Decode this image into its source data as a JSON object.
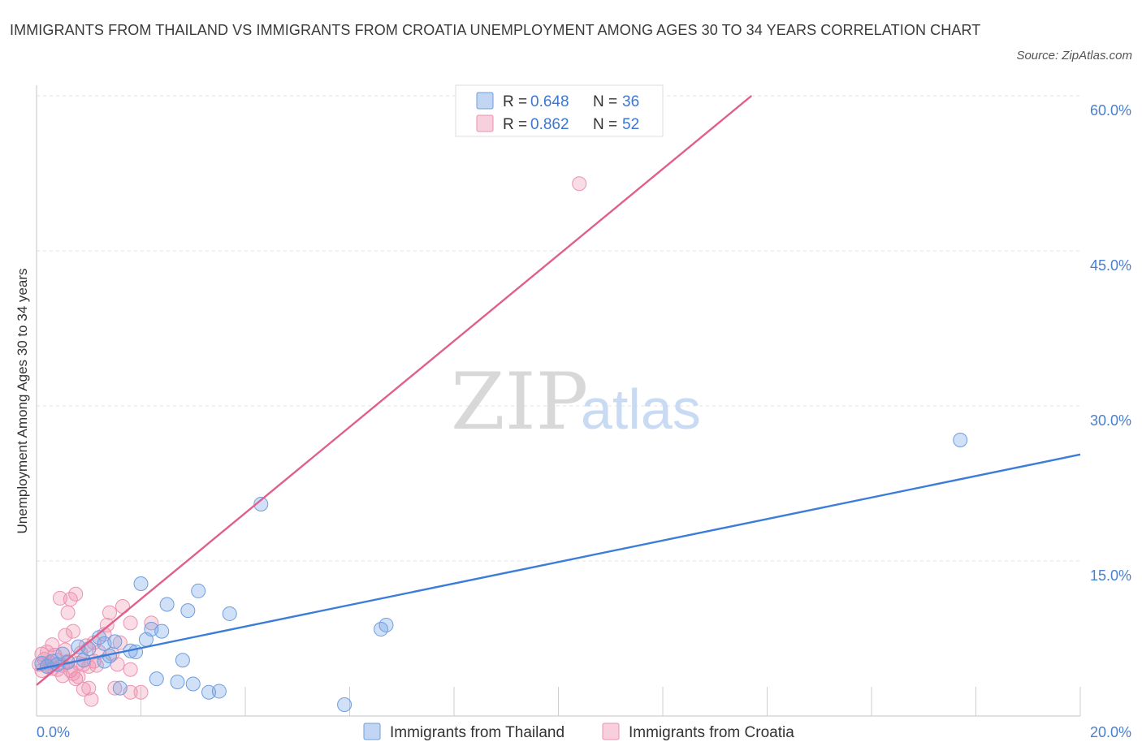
{
  "title": "IMMIGRANTS FROM THAILAND VS IMMIGRANTS FROM CROATIA UNEMPLOYMENT AMONG AGES 30 TO 34 YEARS CORRELATION CHART",
  "source": "Source: ZipAtlas.com",
  "watermark": {
    "zip": "ZIP",
    "atlas": "atlas"
  },
  "colors": {
    "blue": "#3b7dd8",
    "blue_fill": "rgba(120,165,230,0.35)",
    "pink": "#e0608b",
    "pink_fill": "rgba(240,140,170,0.3)",
    "tick_label": "#4a7fd0",
    "grid": "#e3e3e3"
  },
  "legend": {
    "rows": [
      {
        "r_label": "R =",
        "r_value": "0.648",
        "n_label": "N =",
        "n_value": "36"
      },
      {
        "r_label": "R =",
        "r_value": "0.862",
        "n_label": "N =",
        "n_value": "52"
      }
    ]
  },
  "chart_data": {
    "type": "scatter",
    "xlabel": "",
    "ylabel": "Unemployment Among Ages 30 to 34 years",
    "xlim": [
      0,
      20
    ],
    "ylim": [
      0,
      60
    ],
    "x_tick_labels": [
      "0.0%",
      "20.0%"
    ],
    "y_ticks": [
      15,
      30,
      45,
      60
    ],
    "y_tick_labels": [
      "15.0%",
      "30.0%",
      "45.0%",
      "60.0%"
    ],
    "grid": true,
    "legend_position": "top-center",
    "series": [
      {
        "name": "Immigrants from Thailand",
        "color": "#3b7dd8",
        "trend": {
          "x0": 0,
          "y0": 4.5,
          "x1": 20,
          "y1": 25.3
        },
        "points": [
          [
            0.1,
            5.1
          ],
          [
            0.2,
            4.8
          ],
          [
            0.3,
            5.3
          ],
          [
            0.4,
            5.0
          ],
          [
            0.5,
            6.0
          ],
          [
            0.6,
            5.2
          ],
          [
            0.8,
            6.7
          ],
          [
            0.9,
            5.4
          ],
          [
            1.0,
            6.5
          ],
          [
            1.2,
            7.6
          ],
          [
            1.3,
            7.0
          ],
          [
            1.3,
            5.3
          ],
          [
            1.4,
            5.8
          ],
          [
            1.5,
            7.2
          ],
          [
            1.6,
            2.7
          ],
          [
            1.8,
            6.3
          ],
          [
            1.9,
            6.2
          ],
          [
            2.0,
            12.8
          ],
          [
            2.1,
            7.4
          ],
          [
            2.2,
            8.4
          ],
          [
            2.3,
            3.6
          ],
          [
            2.4,
            8.2
          ],
          [
            2.5,
            10.8
          ],
          [
            2.7,
            3.3
          ],
          [
            2.8,
            5.4
          ],
          [
            2.9,
            10.2
          ],
          [
            3.0,
            3.1
          ],
          [
            3.1,
            12.1
          ],
          [
            3.3,
            2.3
          ],
          [
            3.5,
            2.4
          ],
          [
            3.7,
            9.9
          ],
          [
            4.3,
            20.5
          ],
          [
            5.9,
            1.1
          ],
          [
            6.6,
            8.4
          ],
          [
            6.7,
            8.8
          ],
          [
            17.7,
            26.7
          ]
        ]
      },
      {
        "name": "Immigrants from Croatia",
        "color": "#e0608b",
        "trend": {
          "x0": 0,
          "y0": 3.0,
          "x1": 13.7,
          "y1": 60.0
        },
        "points": [
          [
            0.05,
            5.0
          ],
          [
            0.1,
            6.0
          ],
          [
            0.1,
            4.4
          ],
          [
            0.15,
            5.5
          ],
          [
            0.2,
            4.8
          ],
          [
            0.2,
            6.2
          ],
          [
            0.25,
            5.2
          ],
          [
            0.3,
            4.6
          ],
          [
            0.3,
            6.9
          ],
          [
            0.35,
            5.9
          ],
          [
            0.4,
            4.5
          ],
          [
            0.4,
            5.4
          ],
          [
            0.45,
            11.4
          ],
          [
            0.5,
            4.9
          ],
          [
            0.5,
            3.9
          ],
          [
            0.55,
            6.4
          ],
          [
            0.55,
            7.8
          ],
          [
            0.6,
            10.0
          ],
          [
            0.6,
            5.3
          ],
          [
            0.65,
            4.4
          ],
          [
            0.65,
            11.3
          ],
          [
            0.7,
            4.1
          ],
          [
            0.7,
            8.2
          ],
          [
            0.75,
            3.6
          ],
          [
            0.75,
            11.8
          ],
          [
            0.8,
            5.1
          ],
          [
            0.8,
            3.8
          ],
          [
            0.85,
            6.1
          ],
          [
            0.9,
            2.6
          ],
          [
            0.9,
            5.0
          ],
          [
            0.95,
            6.8
          ],
          [
            1.0,
            4.8
          ],
          [
            1.0,
            2.7
          ],
          [
            1.05,
            1.6
          ],
          [
            1.1,
            7.1
          ],
          [
            1.1,
            5.3
          ],
          [
            1.15,
            4.9
          ],
          [
            1.2,
            6.2
          ],
          [
            1.3,
            7.9
          ],
          [
            1.35,
            8.8
          ],
          [
            1.4,
            10.0
          ],
          [
            1.45,
            6.0
          ],
          [
            1.5,
            2.7
          ],
          [
            1.55,
            5.0
          ],
          [
            1.6,
            7.1
          ],
          [
            1.65,
            10.6
          ],
          [
            1.8,
            2.3
          ],
          [
            1.8,
            4.5
          ],
          [
            1.8,
            9.0
          ],
          [
            2.0,
            2.3
          ],
          [
            2.2,
            9.0
          ],
          [
            10.4,
            51.5
          ]
        ]
      }
    ]
  }
}
